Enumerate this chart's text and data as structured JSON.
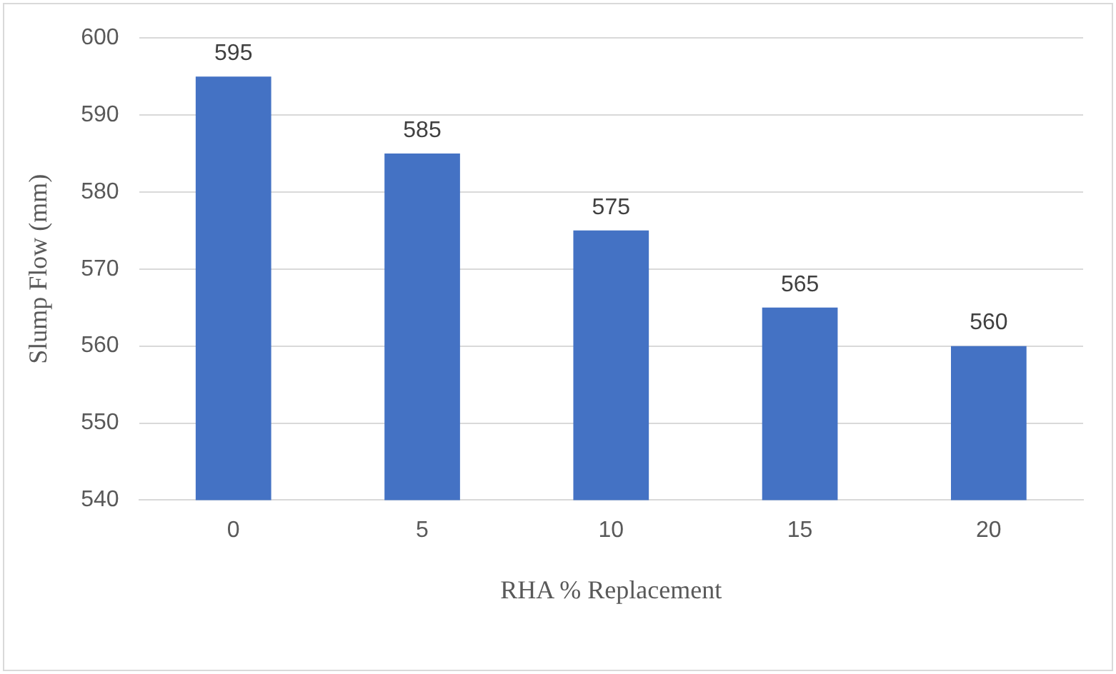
{
  "chart_data": {
    "type": "bar",
    "xlabel": "RHA % Replacement",
    "ylabel": "Slump Flow (mm)",
    "categories": [
      "0",
      "5",
      "10",
      "15",
      "20"
    ],
    "values": [
      595,
      585,
      575,
      565,
      560
    ],
    "color": "#4472c4",
    "ylim": [
      540,
      600
    ],
    "yticks": [
      540,
      550,
      560,
      570,
      580,
      590,
      600
    ],
    "grid": "y",
    "data_labels": true,
    "legend": false
  }
}
